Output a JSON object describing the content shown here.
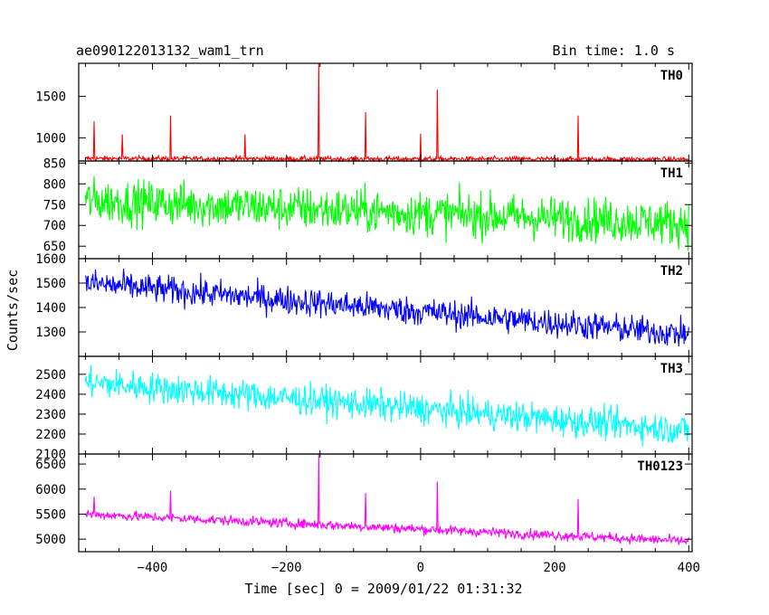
{
  "header": {
    "title": "ae090122013132_wam1_trn",
    "bin_time": "Bin time: 1.0 s"
  },
  "axes": {
    "xlabel": "Time [sec] 0 = 2009/01/22 01:31:32",
    "ylabel": "Counts/sec"
  },
  "chart_data": {
    "type": "line",
    "title": "ae090122013132_wam1_trn",
    "xlabel": "Time [sec] 0 = 2009/01/22 01:31:32",
    "ylabel": "Counts/sec",
    "xlim": [
      -510,
      405
    ],
    "x_ticks": [
      -400,
      -200,
      0,
      200,
      400
    ],
    "x_step": 1.0,
    "grid": false,
    "panels": [
      {
        "name": "TH0",
        "color": "#ff0000",
        "ylim": [
          720,
          1900
        ],
        "y_ticks": [
          1000,
          1500
        ],
        "baseline_start": 750,
        "baseline_end": 740,
        "noise": 22,
        "spikes": [
          {
            "x": -487,
            "y": 1200
          },
          {
            "x": -445,
            "y": 1040
          },
          {
            "x": -373,
            "y": 1270
          },
          {
            "x": -262,
            "y": 1040
          },
          {
            "x": -152,
            "y": 1900
          },
          {
            "x": -82,
            "y": 1310
          },
          {
            "x": 0,
            "y": 1050
          },
          {
            "x": 25,
            "y": 1580
          },
          {
            "x": 235,
            "y": 1270
          }
        ]
      },
      {
        "name": "TH1",
        "color": "#00ff00",
        "ylim": [
          620,
          855
        ],
        "y_ticks": [
          650,
          700,
          750,
          800,
          850
        ],
        "baseline_start": 760,
        "baseline_end": 705,
        "noise": 38,
        "spikes": []
      },
      {
        "name": "TH2",
        "color": "#0000ff",
        "ylim": [
          1200,
          1600
        ],
        "y_ticks": [
          1300,
          1400,
          1500,
          1600
        ],
        "baseline_start": 1500,
        "baseline_end": 1290,
        "noise": 42,
        "spikes": []
      },
      {
        "name": "TH3",
        "color": "#00ffff",
        "ylim": [
          2100,
          2590
        ],
        "y_ticks": [
          2100,
          2200,
          2300,
          2400,
          2500
        ],
        "baseline_start": 2460,
        "baseline_end": 2220,
        "noise": 55,
        "spikes": []
      },
      {
        "name": "TH0123",
        "color": "#ff00ff",
        "ylim": [
          4750,
          6700
        ],
        "y_ticks": [
          5000,
          5500,
          6000,
          6500
        ],
        "baseline_start": 5500,
        "baseline_end": 4960,
        "noise": 70,
        "spikes": [
          {
            "x": -487,
            "y": 5850
          },
          {
            "x": -373,
            "y": 5970
          },
          {
            "x": -152,
            "y": 6700
          },
          {
            "x": -82,
            "y": 5920
          },
          {
            "x": 25,
            "y": 6150
          },
          {
            "x": 235,
            "y": 5800
          }
        ]
      }
    ]
  }
}
